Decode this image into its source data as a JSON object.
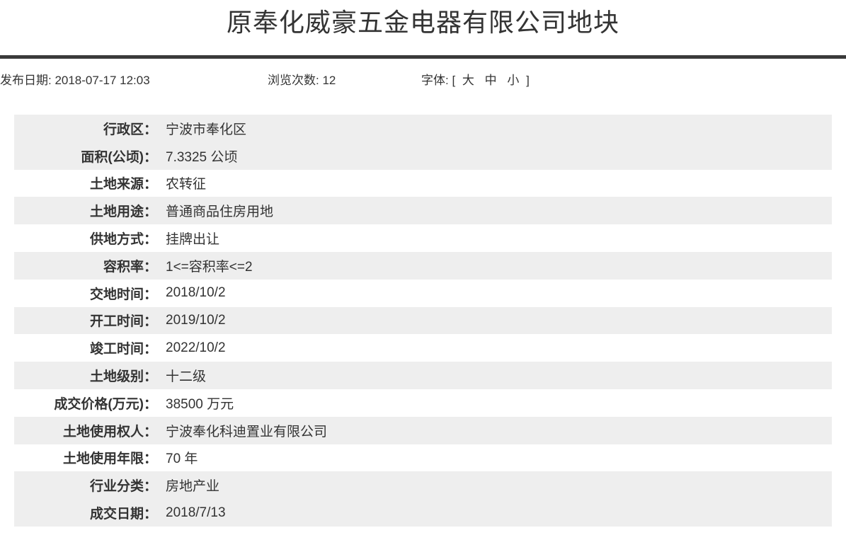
{
  "page": {
    "title": "原奉化威豪五金电器有限公司地块",
    "meta": {
      "publish": "发布日期: 2018-07-17 12:03",
      "views": "浏览次数: 12",
      "font_prefix": "字体: [",
      "font_sizes": [
        "大",
        "中",
        "小"
      ],
      "font_suffix": "]"
    },
    "fields": [
      {
        "label": "行政区：",
        "value": "宁波市奉化区"
      },
      {
        "label": "面积(公顷)：",
        "value": "7.3325 公顷"
      },
      {
        "label": "土地来源：",
        "value": "农转征"
      },
      {
        "label": "土地用途：",
        "value": "普通商品住房用地"
      },
      {
        "label": "供地方式：",
        "value": "挂牌出让"
      },
      {
        "label": "容积率：",
        "value": "1<=容积率<=2"
      },
      {
        "label": "交地时间：",
        "value": "2018/10/2"
      },
      {
        "label": "开工时间：",
        "value": "2019/10/2"
      },
      {
        "label": "竣工时间：",
        "value": "2022/10/2"
      },
      {
        "label": "土地级别：",
        "value": "十二级"
      },
      {
        "label": "成交价格(万元)：",
        "value": "38500 万元"
      },
      {
        "label": "土地使用权人：",
        "value": "宁波奉化科迪置业有限公司"
      },
      {
        "label": "土地使用年限：",
        "value": "70 年"
      },
      {
        "label": "行业分类：",
        "value": "房地产业"
      },
      {
        "label": "成交日期：",
        "value": "2018/7/13"
      }
    ],
    "shaded_rows": [
      0,
      1,
      3,
      5,
      7,
      9,
      11,
      13,
      14
    ],
    "colors": {
      "stripe": "#eeeeee",
      "text": "#333333",
      "divider": "#3a3a3a",
      "background": "#ffffff"
    }
  }
}
